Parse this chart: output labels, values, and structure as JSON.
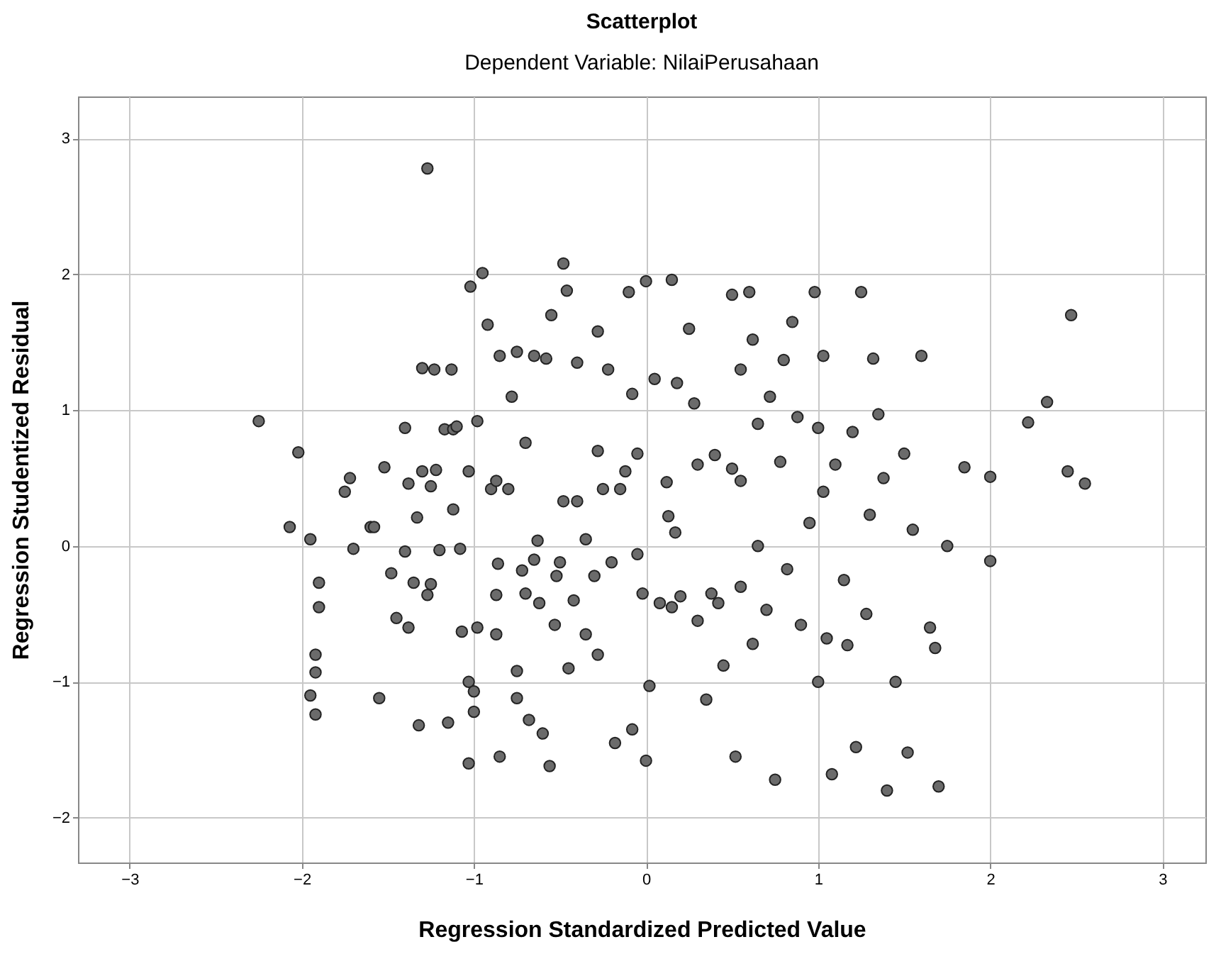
{
  "chart_data": {
    "type": "scatter",
    "title": "Scatterplot",
    "subtitle": "Dependent Variable: NilaiPerusahaan",
    "xlabel": "Regression Standardized Predicted Value",
    "ylabel": "Regression Studentized Residual",
    "xlim": [
      -3.3,
      3.25
    ],
    "ylim": [
      -2.33,
      3.31
    ],
    "xticks": [
      -3,
      -2,
      -1,
      0,
      1,
      2,
      3
    ],
    "yticks": [
      -2,
      -1,
      0,
      1,
      2,
      3
    ],
    "grid": true,
    "marker": "circle",
    "series": [
      {
        "color": "#6b6b6b",
        "x": [
          -1.27,
          -2.25,
          -2.02,
          -2.07,
          -1.95,
          -1.9,
          -1.9,
          -1.92,
          -1.92,
          -1.95,
          -1.92,
          -1.75,
          -1.72,
          -1.7,
          -1.6,
          -1.58,
          -1.55,
          -1.52,
          -1.48,
          -1.45,
          -1.4,
          -1.38,
          -1.4,
          -1.38,
          -1.35,
          -1.32,
          -1.33,
          -1.3,
          -1.3,
          -1.27,
          -1.25,
          -1.25,
          -1.22,
          -1.23,
          -1.2,
          -1.17,
          -1.12,
          -1.12,
          -1.1,
          -1.15,
          -1.13,
          -1.08,
          -1.07,
          -1.03,
          -1.02,
          -1.03,
          -1.03,
          -1.0,
          -1.0,
          -0.98,
          -0.98,
          -0.95,
          -0.92,
          -0.9,
          -0.87,
          -0.85,
          -0.86,
          -0.87,
          -0.87,
          -0.85,
          -0.8,
          -0.78,
          -0.75,
          -0.75,
          -0.75,
          -0.72,
          -0.7,
          -0.7,
          -0.68,
          -0.65,
          -0.65,
          -0.63,
          -0.62,
          -0.6,
          -0.58,
          -0.56,
          -0.55,
          -0.53,
          -0.52,
          -0.5,
          -0.48,
          -0.48,
          -0.46,
          -0.45,
          -0.42,
          -0.4,
          -0.4,
          -0.35,
          -0.35,
          -0.3,
          -0.28,
          -0.28,
          -0.28,
          -0.25,
          -0.22,
          -0.2,
          -0.18,
          -0.15,
          -0.12,
          -0.1,
          -0.08,
          -0.08,
          -0.05,
          -0.05,
          -0.02,
          0.0,
          0.0,
          0.02,
          0.05,
          0.08,
          0.12,
          0.13,
          0.15,
          0.15,
          0.17,
          0.18,
          0.2,
          0.25,
          0.28,
          0.3,
          0.3,
          0.35,
          0.38,
          0.4,
          0.42,
          0.45,
          0.5,
          0.5,
          0.52,
          0.55,
          0.55,
          0.55,
          0.6,
          0.62,
          0.62,
          0.65,
          0.65,
          0.7,
          0.72,
          0.75,
          0.78,
          0.8,
          0.82,
          0.85,
          0.88,
          0.9,
          0.95,
          0.98,
          1.0,
          1.0,
          1.03,
          1.03,
          1.05,
          1.08,
          1.1,
          1.15,
          1.17,
          1.2,
          1.22,
          1.25,
          1.28,
          1.3,
          1.32,
          1.35,
          1.38,
          1.4,
          1.45,
          1.5,
          1.52,
          1.55,
          1.6,
          1.65,
          1.68,
          1.7,
          1.75,
          1.85,
          2.0,
          2.0,
          2.22,
          2.33,
          2.45,
          2.47,
          2.55
        ],
        "values": [
          2.78,
          0.92,
          0.69,
          0.14,
          0.05,
          -0.27,
          -0.45,
          -0.8,
          -0.93,
          -1.1,
          -1.24,
          0.4,
          0.5,
          -0.02,
          0.14,
          0.14,
          -1.12,
          0.58,
          -0.2,
          -0.53,
          0.87,
          0.46,
          -0.04,
          -0.6,
          -0.27,
          -1.32,
          0.21,
          0.55,
          1.31,
          -0.36,
          -0.28,
          0.44,
          0.56,
          1.3,
          -0.03,
          0.86,
          0.86,
          0.27,
          0.88,
          -1.3,
          1.3,
          -0.02,
          -0.63,
          0.55,
          1.91,
          -1.0,
          -1.6,
          -1.07,
          -1.22,
          -0.6,
          0.92,
          2.01,
          1.63,
          0.42,
          0.48,
          1.4,
          -0.13,
          -0.36,
          -0.65,
          -1.55,
          0.42,
          1.1,
          1.43,
          -0.92,
          -1.12,
          -0.18,
          0.76,
          -0.35,
          -1.28,
          1.4,
          -0.1,
          0.04,
          -0.42,
          -1.38,
          1.38,
          -1.62,
          1.7,
          -0.58,
          -0.22,
          -0.12,
          0.33,
          2.08,
          1.88,
          -0.9,
          -0.4,
          1.35,
          0.33,
          0.05,
          -0.65,
          -0.22,
          1.58,
          0.7,
          -0.8,
          0.42,
          1.3,
          -0.12,
          -1.45,
          0.42,
          0.55,
          1.87,
          1.12,
          -1.35,
          0.68,
          -0.06,
          -0.35,
          1.95,
          -1.58,
          -1.03,
          1.23,
          -0.42,
          0.47,
          0.22,
          1.96,
          -0.45,
          0.1,
          1.2,
          -0.37,
          1.6,
          1.05,
          0.6,
          -0.55,
          -1.13,
          -0.35,
          0.67,
          -0.42,
          -0.88,
          1.85,
          0.57,
          -1.55,
          1.3,
          0.48,
          -0.3,
          1.87,
          1.52,
          -0.72,
          0.9,
          0.0,
          -0.47,
          1.1,
          -1.72,
          0.62,
          1.37,
          -0.17,
          1.65,
          0.95,
          -0.58,
          0.17,
          1.87,
          -1.0,
          0.87,
          1.4,
          0.4,
          -0.68,
          -1.68,
          0.6,
          -0.25,
          -0.73,
          0.84,
          -1.48,
          1.87,
          -0.5,
          0.23,
          1.38,
          0.97,
          0.5,
          -1.8,
          -1.0,
          0.68,
          -1.52,
          0.12,
          1.4,
          -0.6,
          -0.75,
          -1.77,
          0.0,
          0.58,
          0.51,
          -0.11,
          0.91,
          1.06,
          0.55,
          1.7,
          0.46
        ]
      }
    ]
  }
}
